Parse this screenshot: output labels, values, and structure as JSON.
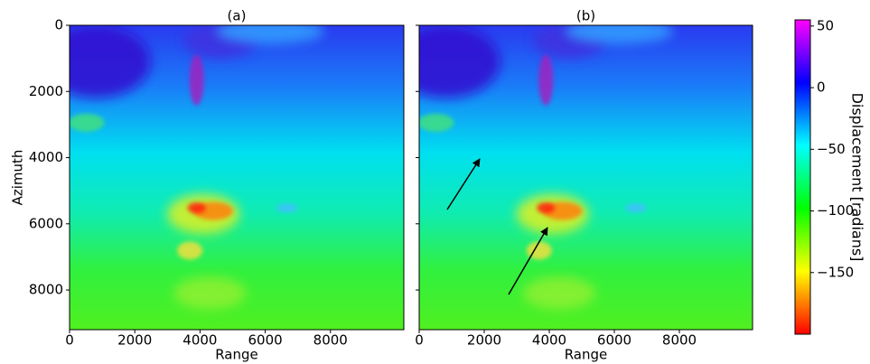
{
  "chart_data": {
    "type": "heatmap",
    "panels": [
      {
        "title": "(a)"
      },
      {
        "title": "(b)"
      }
    ],
    "xlabel": "Range",
    "ylabel": "Azimuth",
    "xlim": [
      0,
      10250
    ],
    "xticks": [
      0,
      2000,
      4000,
      6000,
      8000
    ],
    "ylim": [
      9200,
      0
    ],
    "yticks": [
      0,
      2000,
      4000,
      6000,
      8000
    ],
    "colorbar": {
      "label": "Displacement [radians]",
      "lim": [
        -200,
        55
      ],
      "ticks": [
        {
          "value": -150,
          "label": "−150"
        },
        {
          "value": -100,
          "label": "−100"
        },
        {
          "value": -50,
          "label": "−50"
        },
        0,
        50
      ],
      "colors": [
        "#ff0000",
        "#ffff00",
        "#00ff00",
        "#00ffff",
        "#0000ff",
        "#ff00ff"
      ]
    }
  }
}
